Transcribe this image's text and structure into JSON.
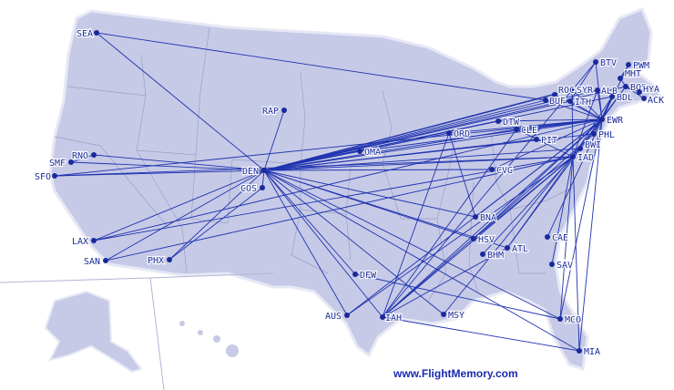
{
  "footer": {
    "site": "www.FlightMemory.com"
  },
  "colors": {
    "land": "#c7cae6",
    "route": "#1f33b0",
    "airport": "#1a2a9a",
    "border": "#9aa0c8"
  },
  "airports": [
    "SEA",
    "RAP",
    "RNO",
    "SMF",
    "SFO",
    "DEN",
    "COS",
    "LAX",
    "SAN",
    "PHX",
    "OMA",
    "ORD",
    "DTW",
    "CLE",
    "PIT",
    "CVG",
    "BNA",
    "HSV",
    "BHM",
    "ATL",
    "CAE",
    "SAV",
    "DFW",
    "AUS",
    "IAH",
    "MSY",
    "MCO",
    "MIA",
    "BTV",
    "PWM",
    "MHT",
    "BOS",
    "HYA",
    "ACK",
    "ALB",
    "BDL",
    "SYR",
    "ROC",
    "BUF",
    "ITH",
    "EWR",
    "PHL",
    "BWI",
    "IAD"
  ],
  "routes": [
    [
      "DEN",
      "SEA"
    ],
    [
      "DEN",
      "RAP"
    ],
    [
      "DEN",
      "RNO"
    ],
    [
      "DEN",
      "SMF"
    ],
    [
      "DEN",
      "SFO"
    ],
    [
      "DEN",
      "LAX"
    ],
    [
      "DEN",
      "SAN"
    ],
    [
      "DEN",
      "PHX"
    ],
    [
      "DEN",
      "COS"
    ],
    [
      "DEN",
      "OMA"
    ],
    [
      "DEN",
      "ORD"
    ],
    [
      "DEN",
      "DTW"
    ],
    [
      "DEN",
      "CLE"
    ],
    [
      "DEN",
      "PIT"
    ],
    [
      "DEN",
      "CVG"
    ],
    [
      "DEN",
      "BNA"
    ],
    [
      "DEN",
      "HSV"
    ],
    [
      "DEN",
      "ATL"
    ],
    [
      "DEN",
      "DFW"
    ],
    [
      "DEN",
      "AUS"
    ],
    [
      "DEN",
      "IAH"
    ],
    [
      "DEN",
      "MSY"
    ],
    [
      "DEN",
      "MCO"
    ],
    [
      "DEN",
      "MIA"
    ],
    [
      "DEN",
      "EWR"
    ],
    [
      "DEN",
      "PHL"
    ],
    [
      "DEN",
      "IAD"
    ],
    [
      "DEN",
      "BWI"
    ],
    [
      "DEN",
      "BOS"
    ],
    [
      "DEN",
      "BDL"
    ],
    [
      "DEN",
      "SYR"
    ],
    [
      "DEN",
      "BUF"
    ],
    [
      "DEN",
      "ROC"
    ],
    [
      "DEN",
      "ITH"
    ],
    [
      "DEN",
      "ALB"
    ],
    [
      "SEA",
      "BUF"
    ],
    [
      "SFO",
      "IAD"
    ],
    [
      "SFO",
      "EWR"
    ],
    [
      "LAX",
      "IAD"
    ],
    [
      "LAX",
      "EWR"
    ],
    [
      "SAN",
      "IAD"
    ],
    [
      "PHX",
      "COS"
    ],
    [
      "SMF",
      "RNO"
    ],
    [
      "ORD",
      "EWR"
    ],
    [
      "ORD",
      "BNA"
    ],
    [
      "ORD",
      "IAH"
    ],
    [
      "DTW",
      "EWR"
    ],
    [
      "CLE",
      "EWR"
    ],
    [
      "CLE",
      "IAD"
    ],
    [
      "CVG",
      "EWR"
    ],
    [
      "OMA",
      "EWR"
    ],
    [
      "IAH",
      "EWR"
    ],
    [
      "IAH",
      "IAD"
    ],
    [
      "IAH",
      "BTV"
    ],
    [
      "IAH",
      "MIA"
    ],
    [
      "IAH",
      "ATL"
    ],
    [
      "IAH",
      "CLE"
    ],
    [
      "IAH",
      "PHL"
    ],
    [
      "AUS",
      "EWR"
    ],
    [
      "AUS",
      "IAD"
    ],
    [
      "MSY",
      "EWR"
    ],
    [
      "ATL",
      "EWR"
    ],
    [
      "ATL",
      "IAD"
    ],
    [
      "BNA",
      "EWR"
    ],
    [
      "HSV",
      "IAD"
    ],
    [
      "HSV",
      "EWR"
    ],
    [
      "CAE",
      "EWR"
    ],
    [
      "SAV",
      "IAD"
    ],
    [
      "MCO",
      "EWR"
    ],
    [
      "MCO",
      "IAD"
    ],
    [
      "MIA",
      "EWR"
    ],
    [
      "MIA",
      "IAD"
    ],
    [
      "MCO",
      "DFW"
    ],
    [
      "BHM",
      "IAD"
    ],
    [
      "EWR",
      "BTV"
    ],
    [
      "EWR",
      "PWM"
    ],
    [
      "EWR",
      "BOS"
    ],
    [
      "EWR",
      "ALB"
    ],
    [
      "EWR",
      "BDL"
    ],
    [
      "EWR",
      "SYR"
    ],
    [
      "EWR",
      "ROC"
    ],
    [
      "EWR",
      "BUF"
    ],
    [
      "EWR",
      "ITH"
    ],
    [
      "IAD",
      "ALB"
    ],
    [
      "IAD",
      "BDL"
    ],
    [
      "IAD",
      "BOS"
    ],
    [
      "IAD",
      "SYR"
    ],
    [
      "PHL",
      "BDL"
    ],
    [
      "BOS",
      "MHT"
    ],
    [
      "BOS",
      "HYA"
    ],
    [
      "BOS",
      "ACK"
    ],
    [
      "BTV",
      "ITH"
    ],
    [
      "MHT",
      "PWM"
    ]
  ]
}
